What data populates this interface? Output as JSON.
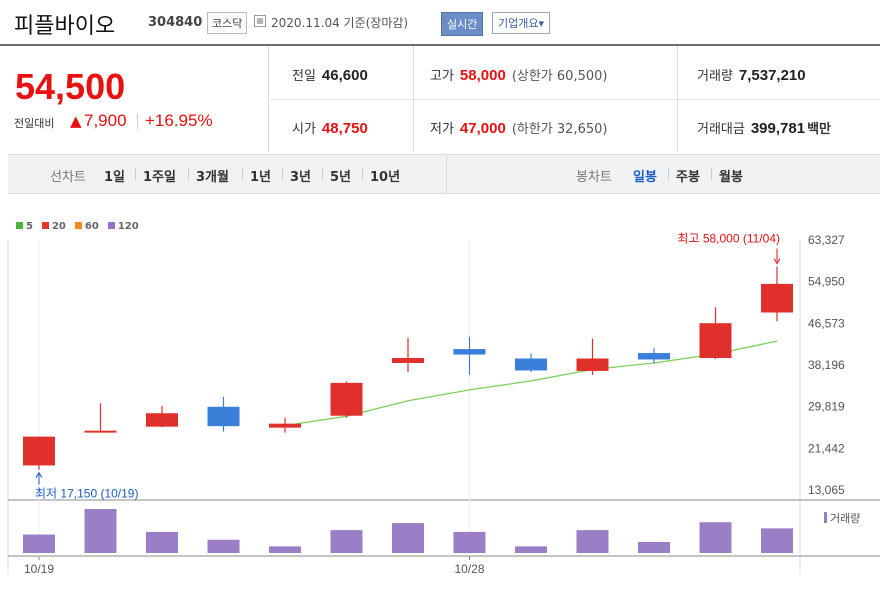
{
  "header": {
    "stock_name": "피플바이오",
    "stock_code": "304840",
    "market": "코스닥",
    "date": "2020.11.04",
    "basis": "기준(장마감)",
    "realtime_label": "실시간",
    "company_info_label": "기업개요▾"
  },
  "price": {
    "current": "54,500",
    "compare_label": "전일대비",
    "change_arrow": "▲",
    "change": "7,900",
    "change_rate": "+16.95%"
  },
  "stats": {
    "prev_close_label": "전일",
    "prev_close": "46,600",
    "high_label": "고가",
    "high": "58,000",
    "upper_limit": "(상한가 60,500)",
    "volume_label": "거래량",
    "volume": "7,537,210",
    "open_label": "시가",
    "open": "48,750",
    "low_label": "저가",
    "low": "47,000",
    "lower_limit": "(하한가 32,650)",
    "amount_label": "거래대금",
    "amount": "399,781",
    "amount_unit": "백만"
  },
  "tabs": {
    "line_label": "선차트",
    "periods": [
      "1일",
      "1주일",
      "3개월",
      "1년",
      "3년",
      "5년",
      "10년"
    ],
    "candle_label": "봉차트",
    "candle_periods": [
      "일봉",
      "주봉",
      "월봉"
    ],
    "active_candle": "일봉"
  },
  "legend": [
    {
      "name": "5",
      "color": "#4cb33c"
    },
    {
      "name": "20",
      "color": "#e0372b"
    },
    {
      "name": "60",
      "color": "#f28a1b"
    },
    {
      "name": "120",
      "color": "#9a6ccc"
    }
  ],
  "colors": {
    "up": "#e0302b",
    "down": "#3a7fd9",
    "ma": "#7dcf5a",
    "volume": "#9b7fc6",
    "red_text": "#e81010",
    "blue_text": "#1a5dc6"
  },
  "chart_data": {
    "type": "candlestick",
    "y_ticks": [
      "63,327",
      "54,950",
      "46,573",
      "38,196",
      "29,819",
      "21,442",
      "13,065"
    ],
    "ylim": [
      13065,
      63327
    ],
    "x_labels": [
      {
        "index": 0,
        "label": "10/19"
      },
      {
        "index": 7,
        "label": "10/28"
      }
    ],
    "candles": [
      {
        "open": 18000,
        "close": 23800,
        "high": 23800,
        "low": 17150
      },
      {
        "open": 25000,
        "close": 25000,
        "high": 30500,
        "low": 24600
      },
      {
        "open": 25800,
        "close": 28500,
        "high": 30000,
        "low": 25700
      },
      {
        "open": 29800,
        "close": 25900,
        "high": 31800,
        "low": 24800
      },
      {
        "open": 25600,
        "close": 26400,
        "high": 27600,
        "low": 24600
      },
      {
        "open": 28000,
        "close": 34600,
        "high": 34900,
        "low": 27600
      },
      {
        "open": 38600,
        "close": 39600,
        "high": 43700,
        "low": 36800
      },
      {
        "open": 41400,
        "close": 40300,
        "high": 43900,
        "low": 36200
      },
      {
        "open": 39500,
        "close": 37100,
        "high": 40500,
        "low": 36800
      },
      {
        "open": 37000,
        "close": 39500,
        "high": 43500,
        "low": 36200
      },
      {
        "open": 40600,
        "close": 39300,
        "high": 41600,
        "low": 38500
      },
      {
        "open": 39600,
        "close": 46600,
        "high": 49800,
        "low": 39400
      },
      {
        "open": 48750,
        "close": 54500,
        "high": 58000,
        "low": 47000
      }
    ],
    "ma20": [
      null,
      null,
      null,
      null,
      26000,
      27900,
      31000,
      33200,
      35000,
      37300,
      38600,
      40400,
      43000
    ],
    "max_annotation": {
      "index": 12,
      "label": "최고 58,000 (11/04)"
    },
    "min_annotation": {
      "index": 0,
      "label": "최저 17,150 (10/19)"
    },
    "volume_label": "거래량",
    "volume_relative": [
      0.42,
      1.0,
      0.48,
      0.3,
      0.15,
      0.52,
      0.68,
      0.48,
      0.15,
      0.52,
      0.25,
      0.7,
      0.56
    ]
  }
}
